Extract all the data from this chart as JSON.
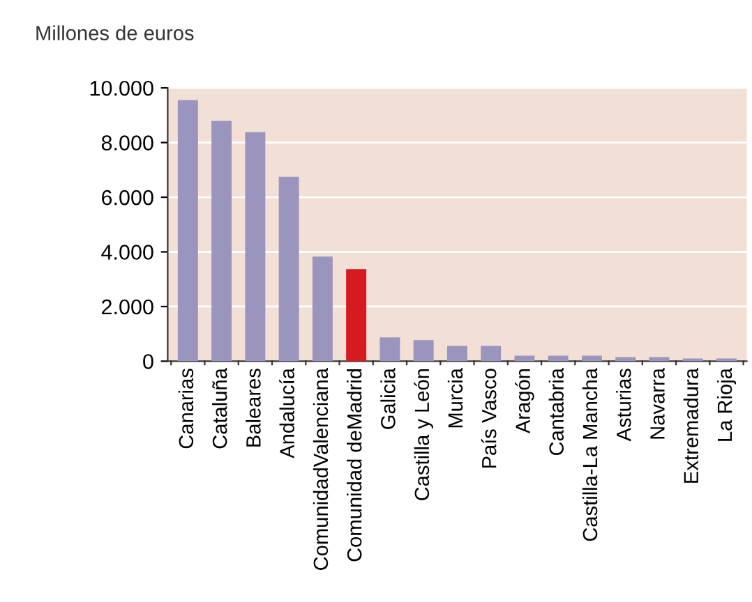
{
  "chart_data": {
    "type": "bar",
    "ylabel": "Millones de euros",
    "categories": [
      "Canarias",
      "Cataluña",
      "Baleares",
      "Andalucía",
      "ComunidadValenciana",
      "Comunidad deMadrid",
      "Galicia",
      "Castilla y León",
      "Murcia",
      "País Vasco",
      "Aragón",
      "Cantabria",
      "Castilla-La Mancha",
      "Asturias",
      "Navarra",
      "Extremadura",
      "La Rioja"
    ],
    "values": [
      9550,
      8790,
      8380,
      6750,
      3830,
      3370,
      870,
      770,
      560,
      560,
      200,
      200,
      200,
      150,
      150,
      100,
      100
    ],
    "colors": [
      "#9a95bd",
      "#9a95bd",
      "#9a95bd",
      "#9a95bd",
      "#9a95bd",
      "#d71920",
      "#9a95bd",
      "#9a95bd",
      "#9a95bd",
      "#9a95bd",
      "#9a95bd",
      "#9a95bd",
      "#9a95bd",
      "#9a95bd",
      "#9a95bd",
      "#9a95bd",
      "#9a95bd"
    ],
    "ylim": [
      0,
      10000
    ],
    "yticks": [
      {
        "value": 0,
        "label": "0"
      },
      {
        "value": 2000,
        "label": "2.000"
      },
      {
        "value": 4000,
        "label": "4.000"
      },
      {
        "value": 6000,
        "label": "6.000"
      },
      {
        "value": 8000,
        "label": "8.000"
      },
      {
        "value": 10000,
        "label": "10.000"
      }
    ],
    "grid": "y"
  }
}
